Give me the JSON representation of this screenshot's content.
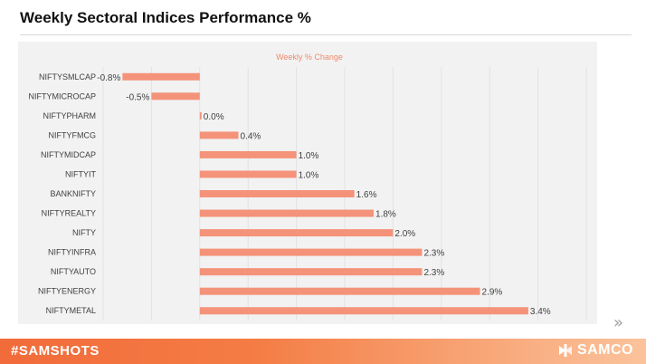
{
  "header": {
    "title": "Weekly Sectoral Indices Performance %"
  },
  "footer": {
    "hashtag": "#SAMSHOTS",
    "brand": "SAMCO"
  },
  "icons": {
    "next": "double-chevron-right-icon",
    "brand_mark": "samco-logo-icon"
  },
  "colors": {
    "bar": "#f4937a",
    "footer_start": "#f26b3a",
    "axis_text": "#404040",
    "legend_text": "#f08a6c"
  },
  "chart_data": {
    "type": "bar",
    "orientation": "horizontal",
    "legend": "Weekly % Change",
    "legend_position": "top",
    "categories": [
      "NIFTYSMLCAP",
      "NIFTYMICROCAP",
      "NIFTYPHARM",
      "NIFTYFMCG",
      "NIFTYMIDCAP",
      "NIFTYIT",
      "BANKNIFTY",
      "NIFTYREALTY",
      "NIFTY",
      "NIFTYINFRA",
      "NIFTYAUTO",
      "NIFTYENERGY",
      "NIFTYMETAL"
    ],
    "values": [
      -0.8,
      -0.5,
      0.0,
      0.4,
      1.0,
      1.0,
      1.6,
      1.8,
      2.0,
      2.3,
      2.3,
      2.9,
      3.4
    ],
    "data_labels": [
      "-0.8%",
      "-0.5%",
      "0.0%",
      "0.4%",
      "1.0%",
      "1.0%",
      "1.6%",
      "1.8%",
      "2.0%",
      "2.3%",
      "2.3%",
      "2.9%",
      "3.4%"
    ],
    "xlim": [
      -1.0,
      4.0
    ],
    "grid": true
  }
}
